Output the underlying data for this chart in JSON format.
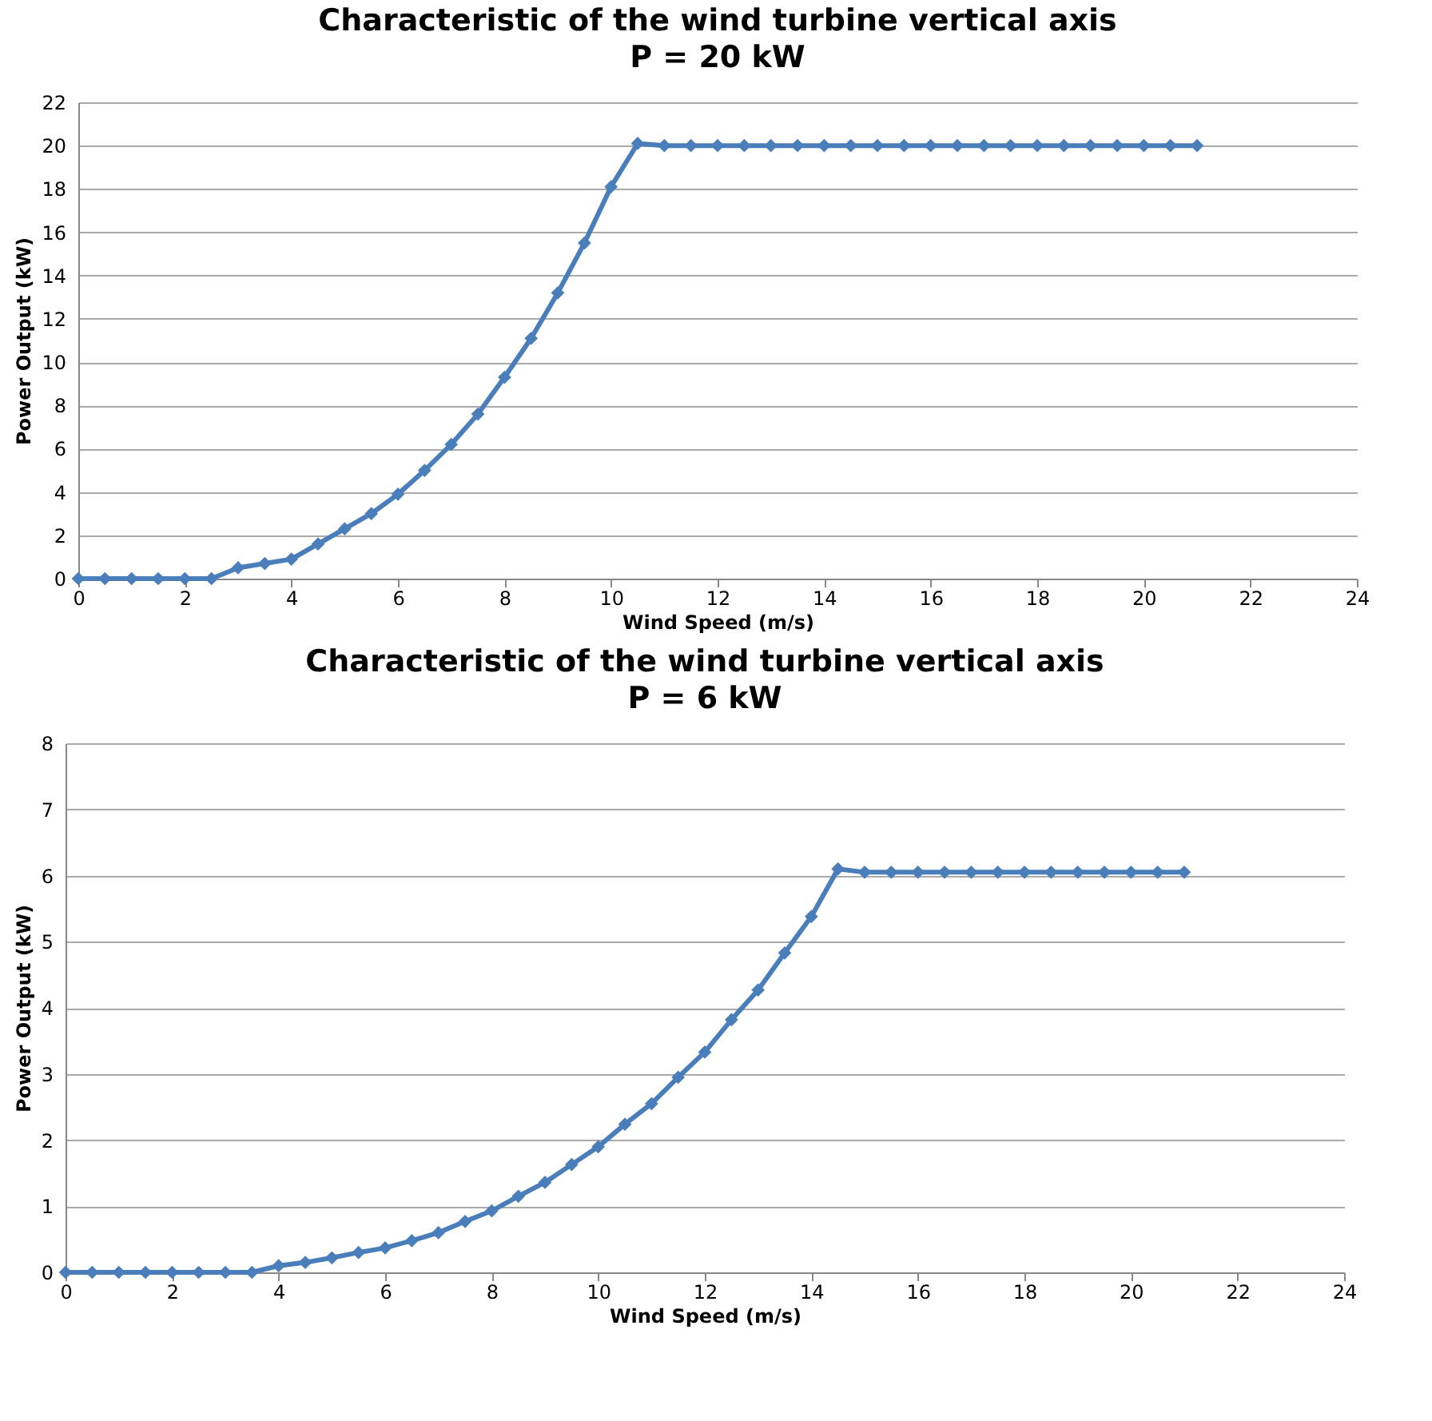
{
  "chart_data": [
    {
      "type": "line",
      "title": "Characteristic of the wind turbine vertical axis",
      "subtitle": "P = 20 kW",
      "xlabel": "Wind Speed (m/s)",
      "ylabel": "Power Output (kW)",
      "x": [
        0,
        0.5,
        1,
        1.5,
        2,
        2.5,
        3,
        3.5,
        4,
        4.5,
        5,
        5.5,
        6,
        6.5,
        7,
        7.5,
        8,
        8.5,
        9,
        9.5,
        10,
        10.5,
        11,
        11.5,
        12,
        12.5,
        13,
        13.5,
        14,
        14.5,
        15,
        15.5,
        16,
        16.5,
        17,
        17.5,
        18,
        18.5,
        19,
        19.5,
        20,
        20.5,
        21
      ],
      "series": [
        {
          "color": "#4a7ebb",
          "values": [
            0,
            0,
            0,
            0,
            0,
            0,
            0.5,
            0.7,
            0.9,
            1.6,
            2.3,
            3.0,
            3.9,
            5.0,
            6.2,
            7.6,
            9.3,
            11.1,
            13.2,
            15.5,
            18.1,
            20.1,
            20,
            20,
            20,
            20,
            20,
            20,
            20,
            20,
            20,
            20,
            20,
            20,
            20,
            20,
            20,
            20,
            20,
            20,
            20,
            20,
            20
          ]
        }
      ],
      "xlim": [
        0,
        24
      ],
      "xticks": [
        0,
        2,
        4,
        6,
        8,
        10,
        12,
        14,
        16,
        18,
        20,
        22,
        24
      ],
      "ylim": [
        0,
        22
      ],
      "yticks": [
        0,
        2,
        4,
        6,
        8,
        10,
        12,
        14,
        16,
        18,
        20,
        22
      ],
      "grid": "y",
      "marker": "diamond",
      "line_style": "solid"
    },
    {
      "type": "line",
      "title": "Characteristic of the wind turbine vertical axis",
      "subtitle": "P = 6 kW",
      "xlabel": "Wind Speed (m/s)",
      "ylabel": "Power Output (kW)",
      "x": [
        0,
        0.5,
        1,
        1.5,
        2,
        2.5,
        3,
        3.5,
        4,
        4.5,
        5,
        5.5,
        6,
        6.5,
        7,
        7.5,
        8,
        8.5,
        9,
        9.5,
        10,
        10.5,
        11,
        11.5,
        12,
        12.5,
        13,
        13.5,
        14,
        14.5,
        15,
        15.5,
        16,
        16.5,
        17,
        17.5,
        18,
        18.5,
        19,
        19.5,
        20,
        20.5,
        21
      ],
      "series": [
        {
          "color": "#4a7ebb",
          "values": [
            0,
            0,
            0,
            0,
            0,
            0,
            0,
            0,
            0.1,
            0.15,
            0.22,
            0.3,
            0.37,
            0.48,
            0.6,
            0.77,
            0.93,
            1.15,
            1.36,
            1.63,
            1.9,
            2.24,
            2.55,
            2.95,
            3.33,
            3.82,
            4.27,
            4.83,
            5.38,
            6.1,
            6.05,
            6.05,
            6.05,
            6.05,
            6.05,
            6.05,
            6.05,
            6.05,
            6.05,
            6.05,
            6.05,
            6.05,
            6.05
          ]
        }
      ],
      "xlim": [
        0,
        24
      ],
      "xticks": [
        0,
        2,
        4,
        6,
        8,
        10,
        12,
        14,
        16,
        18,
        20,
        22,
        24
      ],
      "ylim": [
        0,
        8
      ],
      "yticks": [
        0,
        1,
        2,
        3,
        4,
        5,
        6,
        7,
        8
      ],
      "grid": "y",
      "marker": "diamond",
      "line_style": "solid"
    }
  ]
}
